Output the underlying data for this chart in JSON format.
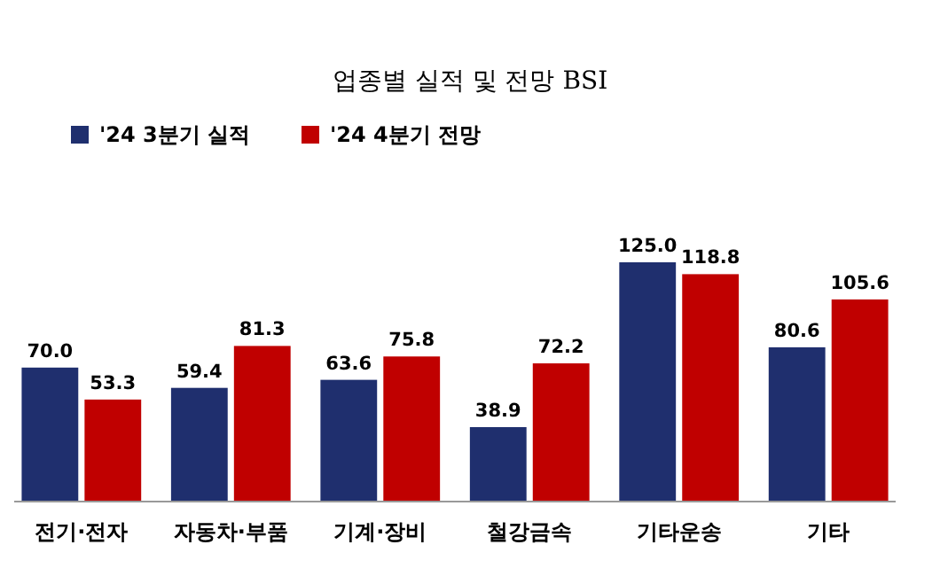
{
  "chart_data": {
    "type": "bar",
    "title": "업종별 실적 및 전망 BSI",
    "categories": [
      "전기·전자",
      "자동차·부품",
      "기계·장비",
      "철강금속",
      "기타운송",
      "기타"
    ],
    "series": [
      {
        "name": "'24 3분기 실적",
        "color": "#1f2f6e",
        "values": [
          70.0,
          59.4,
          63.6,
          38.9,
          125.0,
          80.6
        ],
        "value_labels": [
          "70.0",
          "59.4",
          "63.6",
          "38.9",
          "125.0",
          "80.6"
        ]
      },
      {
        "name": "'24 4분기 전망",
        "color": "#c00000",
        "values": [
          53.3,
          81.3,
          75.8,
          72.2,
          118.8,
          105.6
        ],
        "value_labels": [
          "53.3",
          "81.3",
          "75.8",
          "72.2",
          "118.8",
          "105.6"
        ]
      }
    ],
    "legend": "top left",
    "grid": false
  }
}
